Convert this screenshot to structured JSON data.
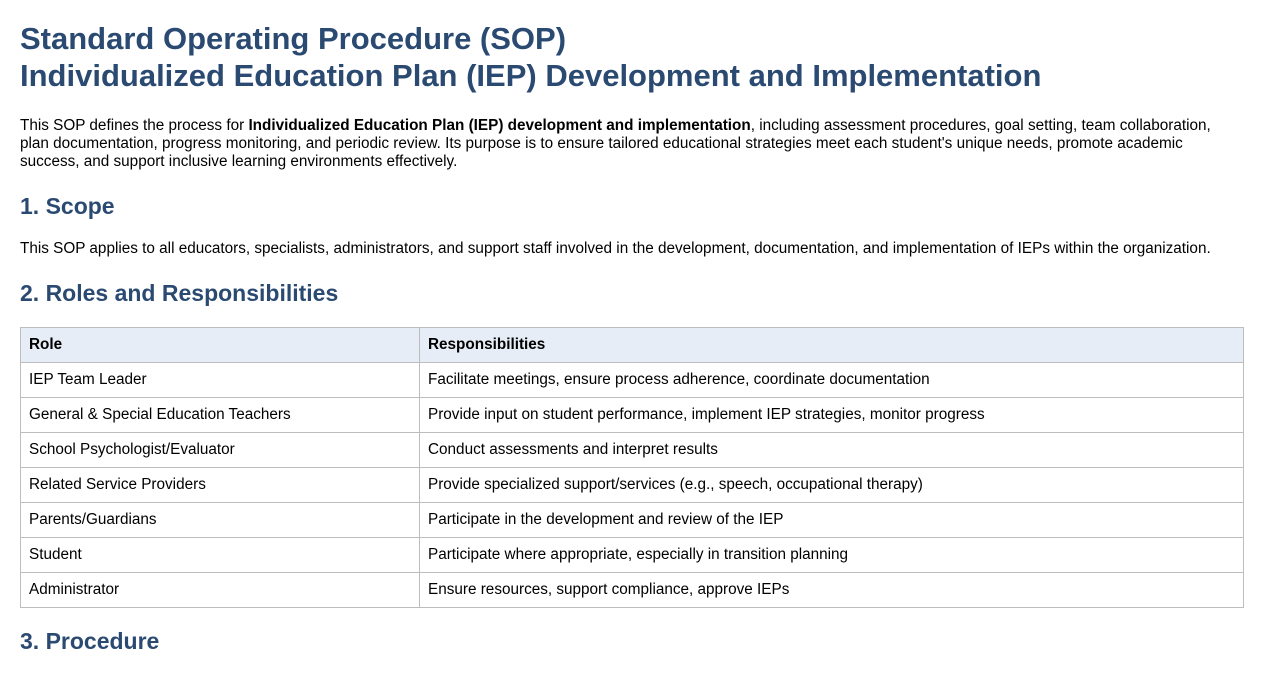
{
  "title": {
    "line1": "Standard Operating Procedure (SOP)",
    "line2": "Individualized Education Plan (IEP) Development and Implementation"
  },
  "intro": {
    "before": "This SOP defines the process for ",
    "bold": "Individualized Education Plan (IEP) development and implementation",
    "after": ", including assessment procedures, goal setting, team collaboration, plan documentation, progress monitoring, and periodic review. Its purpose is to ensure tailored educational strategies meet each student's unique needs, promote academic success, and support inclusive learning environments effectively."
  },
  "scope": {
    "heading": "1. Scope",
    "text": "This SOP applies to all educators, specialists, administrators, and support staff involved in the development, documentation, and implementation of IEPs within the organization."
  },
  "roles": {
    "heading": "2. Roles and Responsibilities",
    "headers": [
      "Role",
      "Responsibilities"
    ],
    "rows": [
      [
        "IEP Team Leader",
        "Facilitate meetings, ensure process adherence, coordinate documentation"
      ],
      [
        "General & Special Education Teachers",
        "Provide input on student performance, implement IEP strategies, monitor progress"
      ],
      [
        "School Psychologist/Evaluator",
        "Conduct assessments and interpret results"
      ],
      [
        "Related Service Providers",
        "Provide specialized support/services (e.g., speech, occupational therapy)"
      ],
      [
        "Parents/Guardians",
        "Participate in the development and review of the IEP"
      ],
      [
        "Student",
        "Participate where appropriate, especially in transition planning"
      ],
      [
        "Administrator",
        "Ensure resources, support compliance, approve IEPs"
      ]
    ]
  },
  "procedure": {
    "heading": "3. Procedure"
  },
  "colors": {
    "heading": "#2b4a72",
    "table_header_bg": "#e6edf6",
    "table_border": "#bdbdbd"
  }
}
